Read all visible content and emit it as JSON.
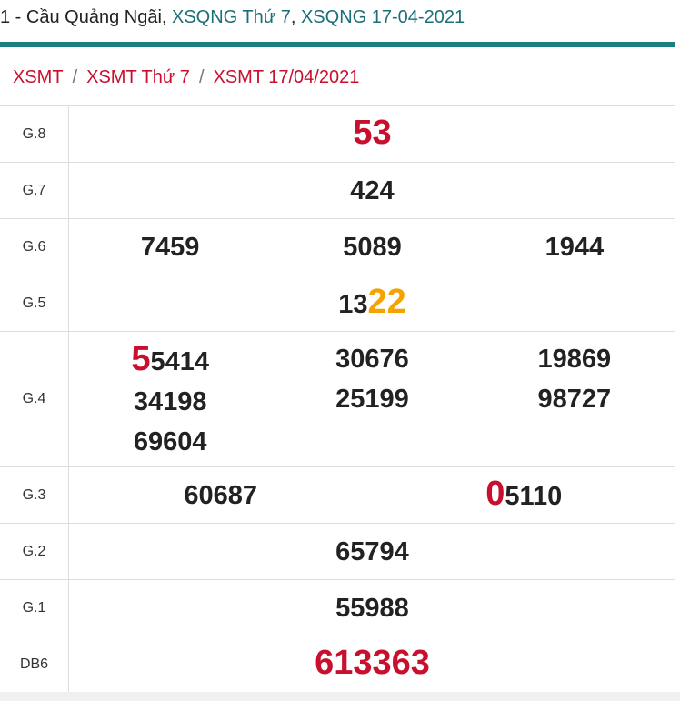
{
  "header": {
    "prefix": "1 - Cầu Quảng Ngãi,",
    "link1": "XSQNG Thứ 7",
    "comma": ",",
    "link2": "XSQNG 17-04-2021"
  },
  "breadcrumb": {
    "separator": "/",
    "items": [
      "XSMT",
      "XSMT Thứ 7",
      "XSMT 17/04/2021"
    ]
  },
  "table": {
    "rows": [
      {
        "label": "G.8",
        "cells": [
          [
            [
              {
                "text": "53",
                "color": "#c8102e"
              }
            ]
          ]
        ]
      },
      {
        "label": "G.7",
        "cells": [
          [
            [
              {
                "text": "424"
              }
            ]
          ]
        ]
      },
      {
        "label": "G.6",
        "cells": [
          [
            [
              {
                "text": "7459"
              }
            ]
          ],
          [
            [
              {
                "text": "5089"
              }
            ]
          ],
          [
            [
              {
                "text": "1944"
              }
            ]
          ]
        ]
      },
      {
        "label": "G.5",
        "cells": [
          [
            [
              {
                "text": "13"
              },
              {
                "text": "22",
                "color": "#f5a300"
              }
            ]
          ]
        ]
      },
      {
        "label": "G.4",
        "cells": [
          [
            [
              {
                "text": "5",
                "color": "#c8102e"
              },
              {
                "text": "5414"
              }
            ],
            [
              {
                "text": "34198"
              }
            ],
            [
              {
                "text": "69604"
              }
            ]
          ],
          [
            [
              {
                "text": "30676"
              }
            ],
            [
              {
                "text": "25199"
              }
            ]
          ],
          [
            [
              {
                "text": "19869"
              }
            ],
            [
              {
                "text": "98727"
              }
            ]
          ]
        ]
      },
      {
        "label": "G.3",
        "cells": [
          [
            [
              {
                "text": "60687"
              }
            ]
          ],
          [
            [
              {
                "text": "0",
                "color": "#c8102e"
              },
              {
                "text": "5110"
              }
            ]
          ]
        ]
      },
      {
        "label": "G.2",
        "cells": [
          [
            [
              {
                "text": "65794"
              }
            ]
          ]
        ]
      },
      {
        "label": "G.1",
        "cells": [
          [
            [
              {
                "text": "55988"
              }
            ]
          ]
        ]
      },
      {
        "label": "DB6",
        "cells": [
          [
            [
              {
                "text": "613363",
                "color": "#c8102e"
              }
            ]
          ]
        ]
      }
    ]
  }
}
